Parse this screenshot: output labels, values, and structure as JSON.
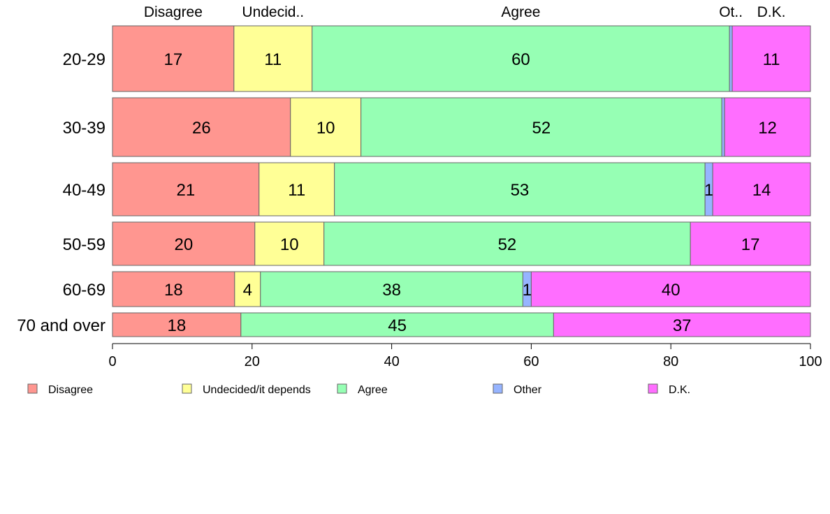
{
  "chart_data": {
    "type": "bar",
    "orientation": "horizontal",
    "stacked": true,
    "normalized": true,
    "categories": [
      "20-29",
      "30-39",
      "40-49",
      "50-59",
      "60-69",
      "70 and over"
    ],
    "series": [
      {
        "name": "Disagree",
        "color": "#ff9690",
        "values": [
          17.4,
          25.5,
          21.0,
          20.4,
          17.5,
          18.4
        ]
      },
      {
        "name": "Undecided/it depends",
        "color": "#ffff96",
        "values": [
          11.2,
          10.1,
          10.8,
          9.9,
          3.7,
          0
        ]
      },
      {
        "name": "Agree",
        "color": "#96ffb4",
        "values": [
          59.8,
          51.7,
          53.1,
          52.5,
          37.6,
          44.8
        ]
      },
      {
        "name": "Other",
        "color": "#96b4ff",
        "values": [
          0.4,
          0.4,
          1.1,
          0,
          1.2,
          0
        ]
      },
      {
        "name": "D.K.",
        "color": "#ff6eff",
        "values": [
          11.2,
          12.3,
          14.0,
          17.2,
          40.0,
          36.8
        ]
      }
    ],
    "data_labels": [
      [
        "17",
        "11",
        "60",
        "",
        "11"
      ],
      [
        "26",
        "10",
        "52",
        "",
        "12"
      ],
      [
        "21",
        "11",
        "53",
        "1",
        "14"
      ],
      [
        "20",
        "10",
        "52",
        "",
        "17"
      ],
      [
        "18",
        "4",
        "38",
        "1",
        "40"
      ],
      [
        "18",
        "",
        "45",
        "",
        "37"
      ]
    ],
    "top_labels": [
      {
        "text": "Disagree",
        "x": 8.7
      },
      {
        "text": "Undecid..",
        "x": 23.0
      },
      {
        "text": "Agree",
        "x": 58.5
      },
      {
        "text": "Ot..",
        "x": 88.6
      },
      {
        "text": "D.K.",
        "x": 94.4
      }
    ],
    "xlim": [
      0,
      100
    ],
    "xticks": [
      0,
      20,
      40,
      60,
      80,
      100
    ],
    "grid": false,
    "legend_position": "bottom",
    "title": "",
    "xlabel": "",
    "ylabel": ""
  }
}
